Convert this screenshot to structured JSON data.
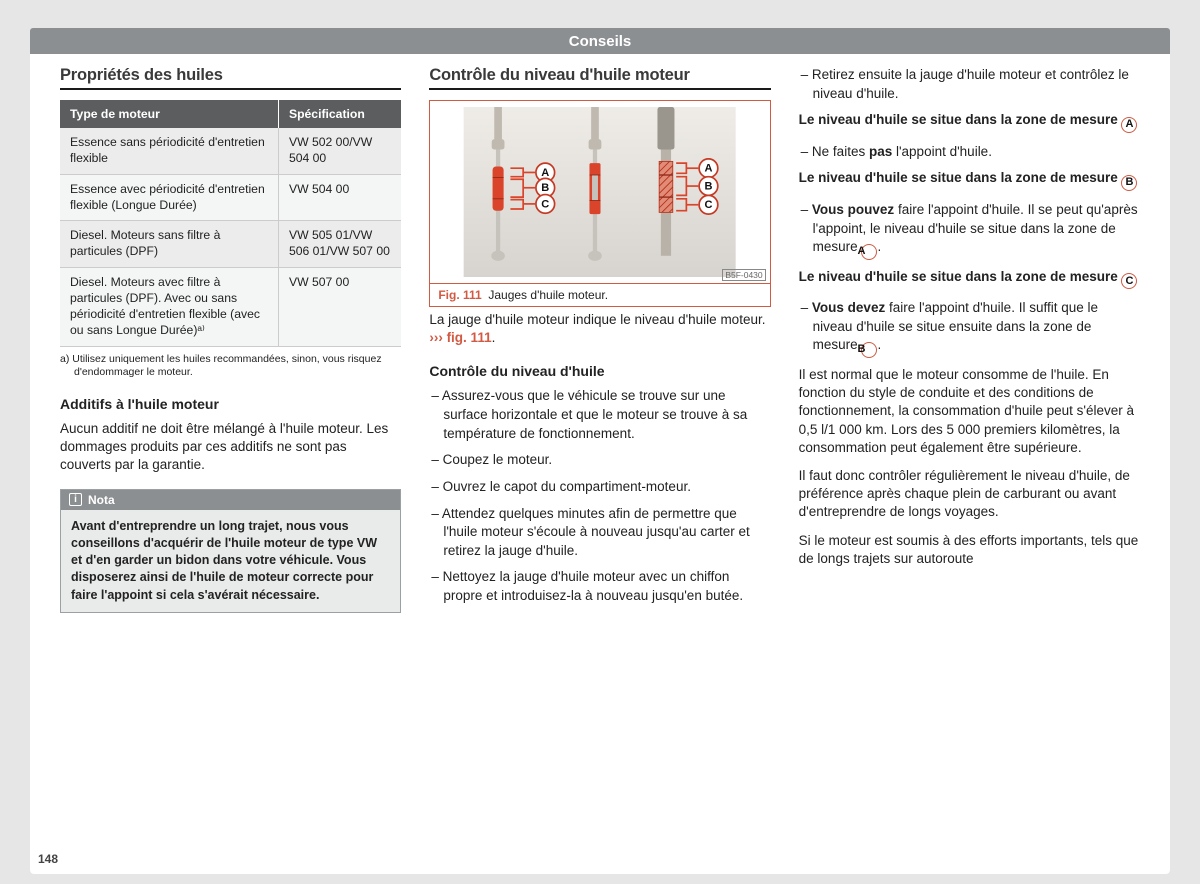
{
  "page_number": "148",
  "header_tab": "Conseils",
  "col1": {
    "title": "Propriétés des huiles",
    "table": {
      "headers": [
        "Type de moteur",
        "Spécification"
      ],
      "rows": [
        [
          "Essence sans périodicité d'entretien flexible",
          "VW 502 00/VW 504 00"
        ],
        [
          "Essence avec périodicité d'entretien flexible (Longue Durée)",
          "VW 504 00"
        ],
        [
          "Diesel. Moteurs sans filtre à particules (DPF)",
          "VW 505 01/VW 506 01/VW 507 00"
        ],
        [
          "Diesel. Moteurs avec filtre à particules (DPF). Avec ou sans périodicité d'entretien flexible (avec ou sans Longue Durée)ᵃ⁾",
          "VW 507 00"
        ]
      ]
    },
    "footnote": "a)  Utilisez uniquement les huiles recommandées, sinon, vous risquez d'endommager le moteur.",
    "additifs_title": "Additifs à l'huile moteur",
    "additifs_text": "Aucun additif ne doit être mélangé à l'huile moteur. Les dommages produits par ces additifs ne sont pas couverts par la garantie.",
    "nota_label": "Nota",
    "nota_text": "Avant d'entreprendre un long trajet, nous vous conseillons d'acquérir de l'huile moteur de type VW et d'en garder un bidon dans votre véhicule. Vous disposerez ainsi de l'huile de moteur correcte pour faire l'appoint si cela s'avérait nécessaire."
  },
  "col2": {
    "title": "Contrôle du niveau d'huile moteur",
    "fig_label": "Fig. 111",
    "fig_caption": "Jauges d'huile moteur.",
    "bsf": "B5F-0430",
    "intro_a": "La jauge d'huile moteur indique le niveau d'huile moteur. ",
    "intro_b": "››› fig. 111",
    "sub_title": "Contrôle du niveau d'huile",
    "steps": [
      "Assurez-vous que le véhicule se trouve sur une surface horizontale et que le moteur se trouve à sa température de fonctionnement.",
      "Coupez le moteur.",
      "Ouvrez le capot du compartiment-moteur.",
      "Attendez quelques minutes afin de permettre que l'huile moteur s'écoule à nouveau jusqu'au carter et retirez la jauge d'huile.",
      "Nettoyez la jauge d'huile moteur avec un chiffon propre et introduisez-la à nouveau jusqu'en butée."
    ],
    "dip_colors": {
      "metal": "#c6c2bc",
      "handle": "#bfb9af",
      "zone": "#d9442b",
      "hatch": "#e07a66",
      "label_stroke": "#c43a24",
      "label_fill": "#ffffff",
      "bracket": "#d9442b",
      "text": "#1a1a1a",
      "bg": "#e9e7e3",
      "grad1": "#efece7",
      "grad2": "#d7d4cf"
    }
  },
  "col3": {
    "step_last": "Retirez ensuite la jauge d'huile moteur et contrôlez le niveau d'huile.",
    "zoneA_head": "Le niveau d'huile se situe dans la zone de mesure ",
    "zoneA_letter": "A",
    "zoneA_line1a": "Ne faites ",
    "zoneA_line1b": "pas",
    "zoneA_line1c": " l'appoint d'huile.",
    "zoneB_head": "Le niveau d'huile se situe dans la zone de mesure ",
    "zoneB_letter": "B",
    "zoneB_line1a": "Vous pouvez",
    "zoneB_line1b": " faire l'appoint d'huile. Il se peut qu'après l'appoint, le niveau d'huile se situe dans la zone de mesure ",
    "zoneB_line1c": "A",
    "zoneC_head": "Le niveau d'huile se situe dans la zone de mesure ",
    "zoneC_letter": "C",
    "zoneC_line1a": "Vous devez",
    "zoneC_line1b": " faire l'appoint d'huile. Il suffit que le niveau d'huile se situe ensuite dans la zone de mesure ",
    "zoneC_line1c": "B",
    "para1": "Il est normal que le moteur consomme de l'huile. En fonction du style de conduite et des conditions de fonctionnement, la consommation d'huile peut s'élever à 0,5 l/1 000 km. Lors des 5 000 premiers kilomètres, la consommation peut également être supérieure.",
    "para2": "Il faut donc contrôler régulièrement le niveau d'huile, de préférence après chaque plein de carburant ou avant d'entreprendre de longs voyages.",
    "para3": "Si le moteur est soumis à des efforts importants, tels que de longs trajets sur autoroute"
  }
}
